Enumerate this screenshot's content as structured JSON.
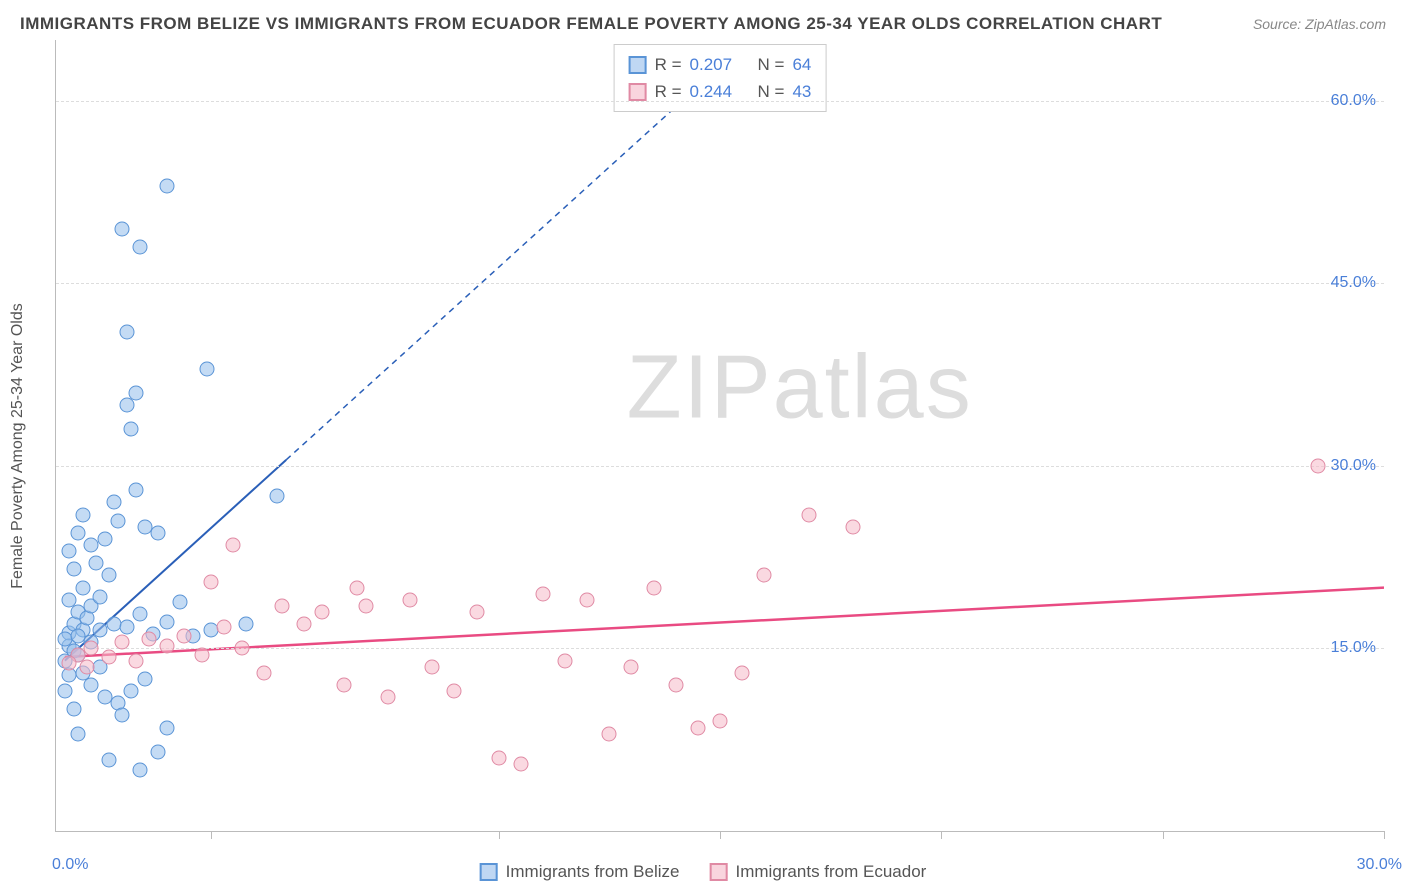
{
  "header": {
    "title": "IMMIGRANTS FROM BELIZE VS IMMIGRANTS FROM ECUADOR FEMALE POVERTY AMONG 25-34 YEAR OLDS CORRELATION CHART",
    "source_prefix": "Source: ",
    "source_name": "ZipAtlas.com"
  },
  "watermark": {
    "part1": "ZIP",
    "part2": "atlas"
  },
  "chart": {
    "type": "scatter",
    "ylabel": "Female Poverty Among 25-34 Year Olds",
    "xlim": [
      0,
      30
    ],
    "ylim": [
      0,
      65
    ],
    "xtick_positions": [
      3.5,
      10,
      15,
      20,
      25,
      30
    ],
    "xtick_labels": {
      "0": "0.0%",
      "30": "30.0%"
    },
    "ytick_positions": [
      15,
      30,
      45,
      60
    ],
    "ytick_labels": {
      "15": "15.0%",
      "30": "30.0%",
      "45": "45.0%",
      "60": "60.0%"
    },
    "background_color": "#ffffff",
    "grid_color": "#dddddd",
    "axis_color": "#bbbbbb",
    "marker_size": 15,
    "series": {
      "belize": {
        "label": "Immigrants from Belize",
        "fill": "rgba(148,189,235,0.55)",
        "stroke": "#5a94d6",
        "R": "0.207",
        "N": "64",
        "trend": {
          "x1": 0.2,
          "y1": 14.0,
          "x2": 5.2,
          "y2": 30.5,
          "color": "#2a5fb8",
          "width": 2,
          "dash_extend_to_x": 14.3,
          "dash_extend_to_y": 60.5
        },
        "points": [
          [
            0.3,
            16.3
          ],
          [
            0.4,
            17.0
          ],
          [
            0.3,
            15.2
          ],
          [
            0.5,
            18.0
          ],
          [
            0.6,
            16.5
          ],
          [
            0.7,
            17.5
          ],
          [
            0.4,
            14.8
          ],
          [
            0.2,
            15.8
          ],
          [
            0.5,
            16.0
          ],
          [
            0.8,
            18.5
          ],
          [
            1.0,
            19.2
          ],
          [
            1.2,
            21.0
          ],
          [
            1.1,
            24.0
          ],
          [
            1.4,
            25.5
          ],
          [
            1.3,
            27.0
          ],
          [
            1.8,
            28.0
          ],
          [
            2.0,
            25.0
          ],
          [
            2.3,
            24.5
          ],
          [
            0.9,
            22.0
          ],
          [
            0.6,
            20.0
          ],
          [
            0.4,
            21.5
          ],
          [
            0.3,
            19.0
          ],
          [
            0.2,
            14.0
          ],
          [
            0.5,
            14.5
          ],
          [
            0.8,
            15.5
          ],
          [
            1.0,
            16.5
          ],
          [
            1.3,
            17.0
          ],
          [
            1.6,
            16.8
          ],
          [
            1.9,
            17.8
          ],
          [
            2.2,
            16.2
          ],
          [
            2.5,
            17.2
          ],
          [
            2.8,
            18.8
          ],
          [
            3.1,
            16.0
          ],
          [
            3.5,
            16.5
          ],
          [
            1.1,
            11.0
          ],
          [
            1.4,
            10.5
          ],
          [
            1.7,
            11.5
          ],
          [
            0.8,
            12.0
          ],
          [
            0.6,
            13.0
          ],
          [
            1.0,
            13.5
          ],
          [
            2.0,
            12.5
          ],
          [
            1.5,
            9.5
          ],
          [
            2.5,
            8.5
          ],
          [
            1.9,
            5.0
          ],
          [
            1.2,
            5.8
          ],
          [
            2.3,
            6.5
          ],
          [
            0.4,
            10.0
          ],
          [
            0.2,
            11.5
          ],
          [
            0.3,
            12.8
          ],
          [
            0.5,
            8.0
          ],
          [
            1.7,
            33.0
          ],
          [
            1.9,
            48.0
          ],
          [
            1.5,
            49.5
          ],
          [
            2.5,
            53.0
          ],
          [
            1.6,
            35.0
          ],
          [
            1.8,
            36.0
          ],
          [
            1.6,
            41.0
          ],
          [
            3.4,
            38.0
          ],
          [
            5.0,
            27.5
          ],
          [
            0.8,
            23.5
          ],
          [
            0.5,
            24.5
          ],
          [
            0.3,
            23.0
          ],
          [
            0.6,
            26.0
          ],
          [
            4.3,
            17.0
          ]
        ]
      },
      "ecuador": {
        "label": "Immigrants from Ecuador",
        "fill": "rgba(245,185,200,0.55)",
        "stroke": "#e08aa4",
        "R": "0.244",
        "N": "43",
        "trend": {
          "x1": 0.2,
          "y1": 14.3,
          "x2": 30.0,
          "y2": 20.0,
          "color": "#e94b82",
          "width": 2.5
        },
        "points": [
          [
            0.5,
            14.5
          ],
          [
            0.8,
            15.0
          ],
          [
            1.2,
            14.3
          ],
          [
            1.5,
            15.5
          ],
          [
            1.8,
            14.0
          ],
          [
            2.1,
            15.8
          ],
          [
            2.5,
            15.2
          ],
          [
            2.9,
            16.0
          ],
          [
            3.3,
            14.5
          ],
          [
            3.8,
            16.8
          ],
          [
            4.2,
            15.0
          ],
          [
            4.7,
            13.0
          ],
          [
            5.1,
            18.5
          ],
          [
            5.6,
            17.0
          ],
          [
            6.0,
            18.0
          ],
          [
            6.5,
            12.0
          ],
          [
            7.0,
            18.5
          ],
          [
            7.5,
            11.0
          ],
          [
            8.0,
            19.0
          ],
          [
            8.5,
            13.5
          ],
          [
            9.0,
            11.5
          ],
          [
            9.5,
            18.0
          ],
          [
            10.0,
            6.0
          ],
          [
            10.5,
            5.5
          ],
          [
            11.0,
            19.5
          ],
          [
            11.5,
            14.0
          ],
          [
            12.0,
            19.0
          ],
          [
            12.5,
            8.0
          ],
          [
            13.0,
            13.5
          ],
          [
            13.5,
            20.0
          ],
          [
            14.0,
            12.0
          ],
          [
            14.5,
            8.5
          ],
          [
            15.0,
            9.0
          ],
          [
            15.5,
            13.0
          ],
          [
            16.0,
            21.0
          ],
          [
            17.0,
            26.0
          ],
          [
            18.0,
            25.0
          ],
          [
            6.8,
            20.0
          ],
          [
            28.5,
            30.0
          ],
          [
            4.0,
            23.5
          ],
          [
            3.5,
            20.5
          ],
          [
            0.3,
            13.8
          ],
          [
            0.7,
            13.5
          ]
        ]
      }
    },
    "stats_box": {
      "r_label": "R =",
      "n_label": "N ="
    },
    "legend_bottom": {
      "series": [
        "belize",
        "ecuador"
      ]
    }
  }
}
